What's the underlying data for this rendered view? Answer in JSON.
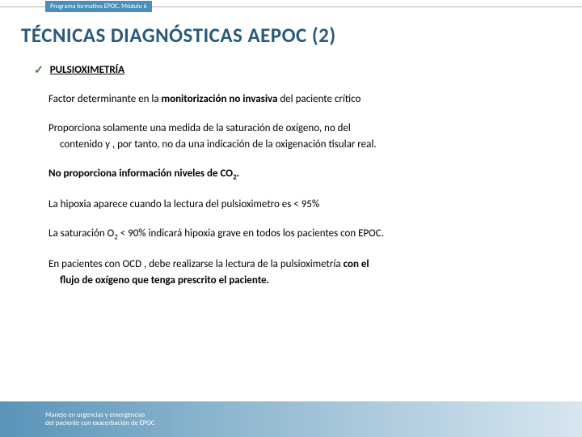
{
  "header": {
    "program_label": "Programa formativo EPOC. Módulo 6"
  },
  "title": "TÉCNICAS DIAGNÓSTICAS AEPOC (2)",
  "section": {
    "check": "✓",
    "heading": "PULSIOXIMETRÍA"
  },
  "paragraphs": {
    "p1_a": "Factor determinante en la ",
    "p1_b": "monitorización no invasiva",
    "p1_c": " del paciente crítico",
    "p2_a": "Proporciona solamente una medida de la saturación de oxígeno, no del ",
    "p2_b": "contenido y , por tanto, no da una indicación de la oxigenación tisular real.",
    "p3_a": "No proporciona información niveles de CO",
    "p3_sub": "2",
    "p3_b": ".",
    "p4": "La hipoxia aparece cuando la lectura del pulsioximetro es < 95%",
    "p5_a": "La saturación O",
    "p5_sub": "2",
    "p5_b": " < 90% indicará hipoxia grave en todos los pacientes con EPOC.",
    "p6_a": "En pacientes con OCD , debe realizarse la lectura de la pulsioximetría ",
    "p6_b": "con el ",
    "p6_c": "flujo de oxígeno que tenga prescrito el paciente."
  },
  "footer": {
    "line1": "Manejo en urgencias y emergencias",
    "line2": "del paciente con exacerbación de EPOC"
  },
  "colors": {
    "title": "#2a5a7a",
    "header_bg": "#4a8fb8",
    "check": "#3a7a3a"
  }
}
